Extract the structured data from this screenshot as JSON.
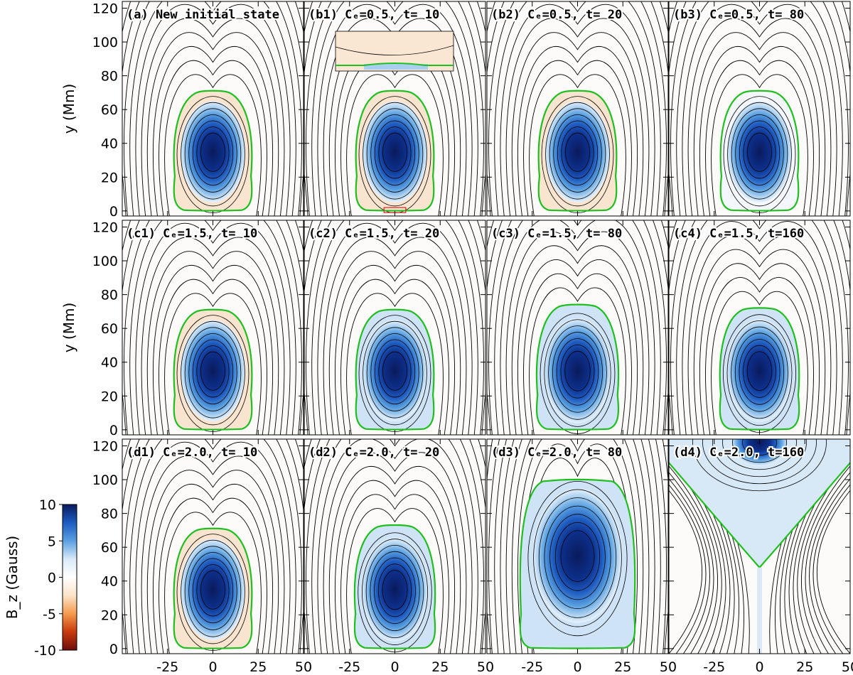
{
  "chart_data": {
    "type": "heatmap",
    "x_ticks": [
      -25,
      0,
      25,
      50
    ],
    "y_ticks": [
      0,
      20,
      40,
      60,
      80,
      100,
      120
    ],
    "xlim": [
      -50,
      50
    ],
    "ylim": [
      -3,
      124
    ],
    "ylabel": "y (Mm)",
    "colorbar": {
      "label": "B_z (Gauss)",
      "ticks": [
        10,
        5,
        0,
        -5,
        -10
      ],
      "range": [
        -10,
        10
      ],
      "colors": [
        "#6e0d0d",
        "#c83a0c",
        "#f59a4e",
        "#fbe3c8",
        "#ffffff",
        "#d8eaf8",
        "#5aa0e0",
        "#1e5cc0",
        "#0a1a5c"
      ]
    },
    "fluxrope_boundary_color": "#1fbf1f",
    "panels": [
      {
        "id": "a",
        "label": "(a) New initial state",
        "center_y": 35,
        "top": 71,
        "orange": true,
        "blue_fill": false,
        "detached": false
      },
      {
        "id": "b1",
        "label": "(b1) C_E=0.5, t= 10",
        "center_y": 35,
        "top": 71,
        "orange": true,
        "blue_fill": false,
        "detached": false,
        "inset": true
      },
      {
        "id": "b2",
        "label": "(b2) C_E=0.5, t= 20",
        "center_y": 35,
        "top": 71,
        "orange": true,
        "blue_fill": false,
        "detached": false
      },
      {
        "id": "b3",
        "label": "(b3) C_E=0.5, t= 80",
        "center_y": 35,
        "top": 71,
        "orange": false,
        "blue_fill": false,
        "detached": false
      },
      {
        "id": "c1",
        "label": "(c1) C_E=1.5, t= 10",
        "center_y": 35,
        "top": 71,
        "orange": true,
        "blue_fill": false,
        "detached": false
      },
      {
        "id": "c2",
        "label": "(c2) C_E=1.5, t= 20",
        "center_y": 35,
        "top": 71,
        "orange": false,
        "blue_fill": true,
        "detached": false
      },
      {
        "id": "c3",
        "label": "(c3) C_E=1.5, t= 80",
        "center_y": 35,
        "top": 74,
        "orange": false,
        "blue_fill": true,
        "detached": false
      },
      {
        "id": "c4",
        "label": "(c4) C_E=1.5, t=160",
        "center_y": 35,
        "top": 72,
        "orange": false,
        "blue_fill": true,
        "detached": false
      },
      {
        "id": "d1",
        "label": "(d1) C_E=2.0, t= 10",
        "center_y": 35,
        "top": 71,
        "orange": true,
        "blue_fill": false,
        "detached": false
      },
      {
        "id": "d2",
        "label": "(d2) C_E=2.0, t= 20",
        "center_y": 35,
        "top": 73,
        "orange": false,
        "blue_fill": true,
        "detached": false
      },
      {
        "id": "d3",
        "label": "(d3) C_E=2.0, t= 80",
        "center_y": 55,
        "top": 100,
        "orange": false,
        "blue_fill": true,
        "detached": false
      },
      {
        "id": "d4",
        "label": "(d4) C_E=2.0, t=160",
        "center_y": 118,
        "top": 124,
        "orange": false,
        "blue_fill": true,
        "detached": true
      }
    ]
  }
}
